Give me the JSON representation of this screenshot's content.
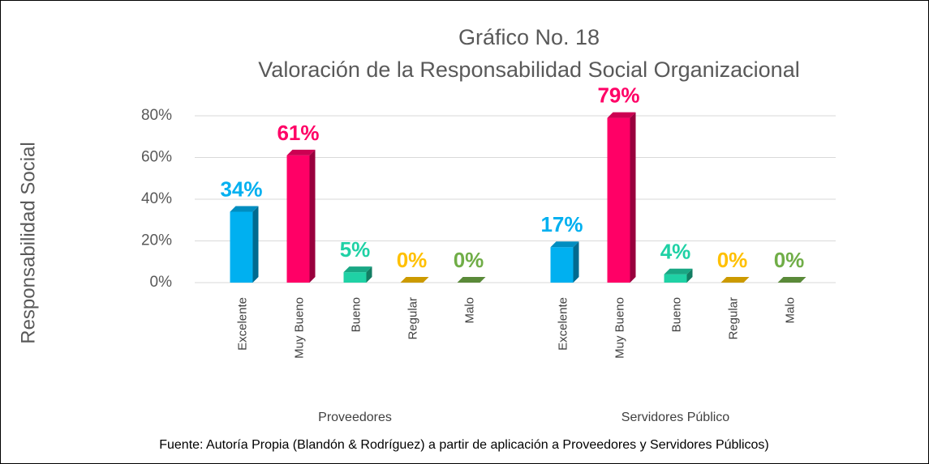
{
  "chart_data": {
    "type": "bar3d",
    "title": [
      "Gráfico No. 18",
      "Valoración de la Responsabilidad Social Organizacional"
    ],
    "y_label": "Responsabilidad Social",
    "source": "Fuente: Autoría Propia (Blandón & Rodríguez) a partir de aplicación a  Proveedores y Servidores Públicos)",
    "categories": [
      "Proveedores",
      "Servidores Público"
    ],
    "series": [
      {
        "name": "Excelente",
        "color": "#00b0f0",
        "values": [
          34,
          17
        ],
        "value_labels": [
          "34%",
          "17%"
        ]
      },
      {
        "name": "Muy Bueno",
        "color": "#ff0066",
        "values": [
          61,
          79
        ],
        "value_labels": [
          "61%",
          "79%"
        ]
      },
      {
        "name": "Bueno",
        "color": "#1fd1a5",
        "values": [
          5,
          4
        ],
        "value_labels": [
          "5%",
          "4%"
        ]
      },
      {
        "name": "Regular",
        "color": "#ffc000",
        "values": [
          0,
          0
        ],
        "value_labels": [
          "0%",
          "0%"
        ]
      },
      {
        "name": "Malo",
        "color": "#70ad47",
        "values": [
          0,
          0
        ],
        "value_labels": [
          "0%",
          "0%"
        ]
      }
    ],
    "ylim": [
      0,
      80
    ],
    "yticks": [
      {
        "value": 0,
        "label": "0%"
      },
      {
        "value": 20,
        "label": "20%"
      },
      {
        "value": 40,
        "label": "40%"
      },
      {
        "value": 60,
        "label": "60%"
      },
      {
        "value": 80,
        "label": "80%"
      }
    ],
    "grid": true
  }
}
